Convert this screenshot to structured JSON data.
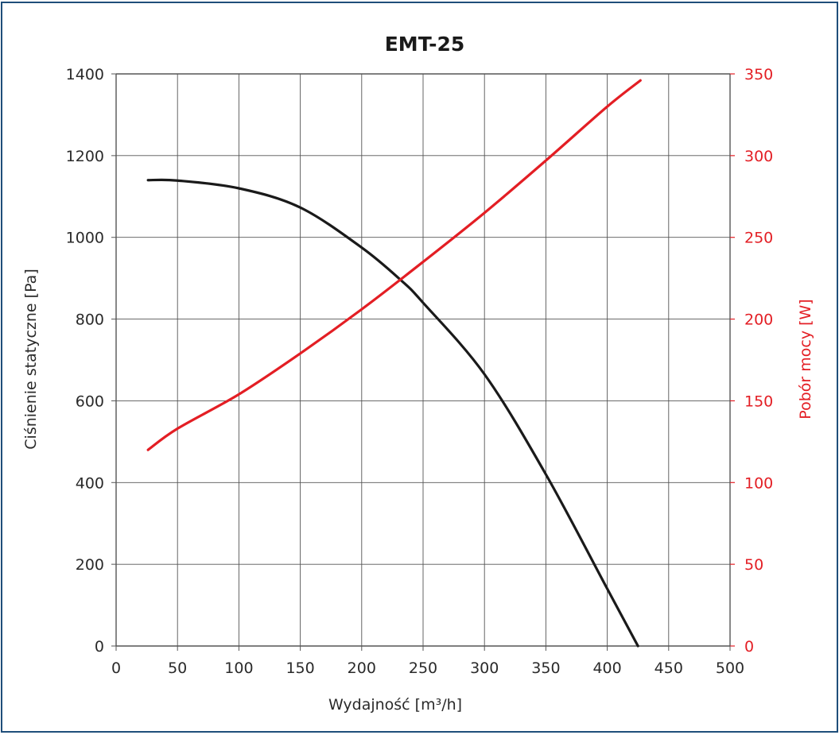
{
  "chart_data": {
    "type": "line",
    "title": "EMT-25",
    "xlabel": "Wydajność [m³/h]",
    "ylabel_left": "Ciśnienie statyczne [Pa]",
    "ylabel_right": "Pobór mocy [W]",
    "xlim": [
      0,
      500
    ],
    "ylim_left": [
      0,
      1400
    ],
    "ylim_right": [
      0,
      350
    ],
    "x_ticks": [
      "0",
      "50",
      "100",
      "150",
      "200",
      "250",
      "300",
      "350",
      "400",
      "450",
      "500"
    ],
    "y_left_ticks": [
      "0",
      "200",
      "400",
      "600",
      "800",
      "1000",
      "1200",
      "1400"
    ],
    "y_right_ticks": [
      "0",
      "50",
      "100",
      "150",
      "200",
      "250",
      "300",
      "350"
    ],
    "grid": true,
    "series": [
      {
        "axis": "left",
        "color": "#1a1a1a",
        "x": [
          26,
          50,
          100,
          150,
          200,
          232,
          250,
          300,
          350,
          400,
          425
        ],
        "y": [
          1140,
          1139,
          1120,
          1073,
          975,
          895,
          840,
          665,
          420,
          140,
          0
        ]
      },
      {
        "axis": "right",
        "color": "#e31e24",
        "x": [
          26,
          50,
          100,
          150,
          200,
          250,
          300,
          350,
          400,
          427
        ],
        "y": [
          120,
          133,
          154,
          179,
          206,
          235,
          265,
          297,
          330,
          346
        ]
      }
    ]
  }
}
